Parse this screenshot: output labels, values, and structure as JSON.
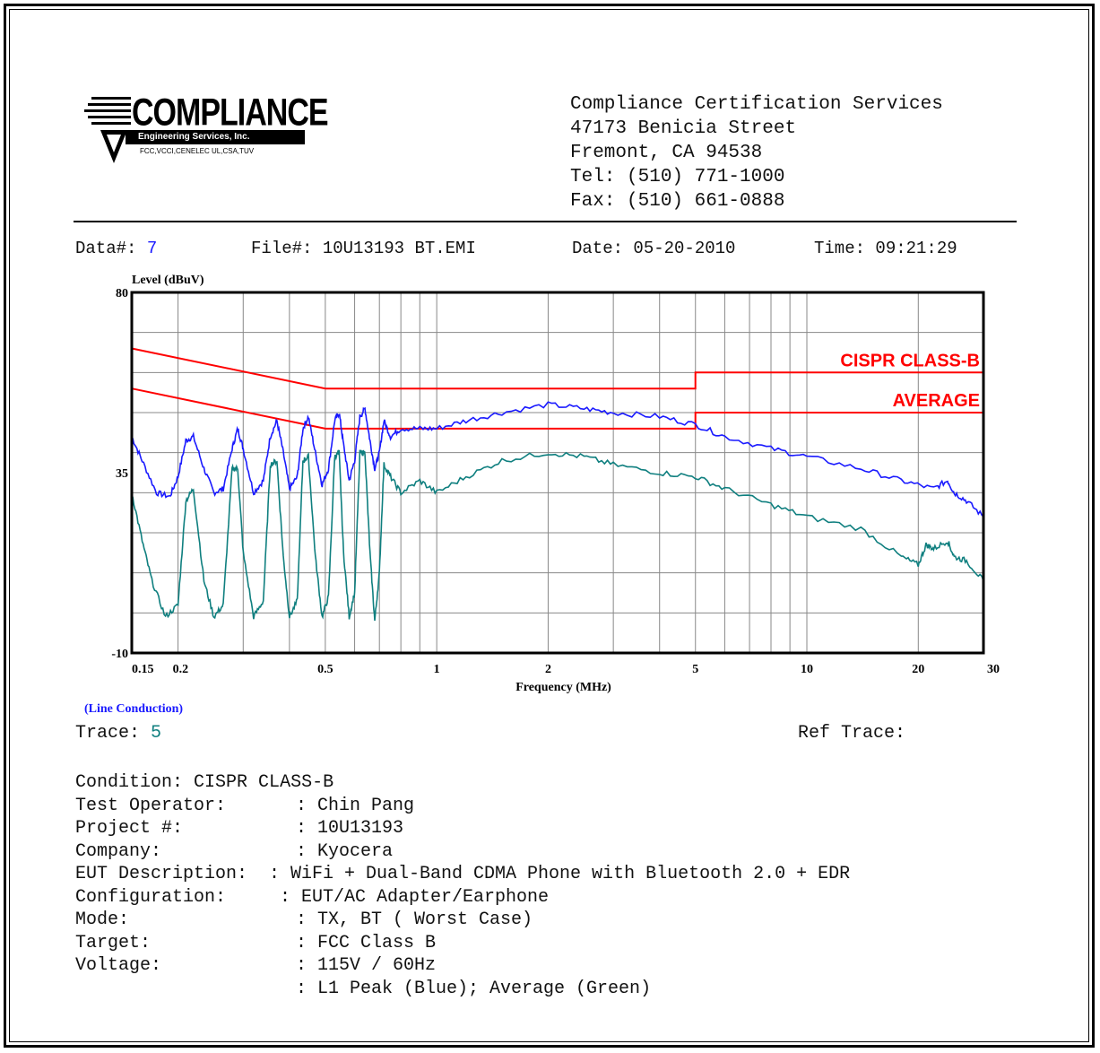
{
  "header": {
    "logo": {
      "word": "COMPLIANCE",
      "bar_text": "Engineering Services, Inc.",
      "small_text": "FCC,VCCI,CENELEC UL,CSA,TUV"
    },
    "address": [
      "Compliance Certification Services",
      "47173 Benicia Street",
      "Fremont, CA 94538",
      "Tel: (510) 771-1000",
      "Fax: (510) 661-0888"
    ]
  },
  "info": {
    "data_label": "Data#:",
    "data_value": "7",
    "file_label": "File#:",
    "file_value": "10U13193 BT.EMI",
    "date_label": "Date:",
    "date_value": "05-20-2010",
    "time_label": "Time:",
    "time_value": "09:21:29"
  },
  "chart_data": {
    "type": "line",
    "title": "",
    "ylabel": "Level (dBuV)",
    "xlabel": "Frequency (MHz)",
    "x_scale": "log",
    "xlim": [
      0.15,
      30
    ],
    "ylim": [
      -10,
      80
    ],
    "y_ticks": [
      "80",
      "35",
      "-10"
    ],
    "x_tick_labels": [
      {
        "v": 0.15,
        "t": "0.15"
      },
      {
        "v": 0.2,
        "t": "0.2"
      },
      {
        "v": 0.5,
        "t": "0.5"
      },
      {
        "v": 1,
        "t": "1"
      },
      {
        "v": 2,
        "t": "2"
      },
      {
        "v": 5,
        "t": "5"
      },
      {
        "v": 10,
        "t": "10"
      },
      {
        "v": 20,
        "t": "20"
      },
      {
        "v": 30,
        "t": "30"
      }
    ],
    "grid": true,
    "limit_lines": [
      {
        "name": "CISPR CLASS-B",
        "color": "#ff0000",
        "points": [
          [
            0.15,
            66
          ],
          [
            0.5,
            56
          ],
          [
            5,
            56
          ],
          [
            5,
            60
          ],
          [
            30,
            60
          ]
        ]
      },
      {
        "name": "AVERAGE",
        "color": "#ff0000",
        "points": [
          [
            0.15,
            56
          ],
          [
            0.5,
            46
          ],
          [
            5,
            46
          ],
          [
            5,
            50
          ],
          [
            30,
            50
          ]
        ]
      }
    ],
    "series": [
      {
        "name": "Peak",
        "color": "#1a1aff",
        "points": [
          [
            0.15,
            44
          ],
          [
            0.16,
            38
          ],
          [
            0.175,
            30
          ],
          [
            0.19,
            29
          ],
          [
            0.2,
            34
          ],
          [
            0.21,
            43
          ],
          [
            0.22,
            44
          ],
          [
            0.235,
            36
          ],
          [
            0.25,
            30
          ],
          [
            0.265,
            31
          ],
          [
            0.28,
            41
          ],
          [
            0.29,
            46
          ],
          [
            0.3,
            41
          ],
          [
            0.32,
            30
          ],
          [
            0.34,
            33
          ],
          [
            0.355,
            44
          ],
          [
            0.37,
            48
          ],
          [
            0.385,
            40
          ],
          [
            0.4,
            31
          ],
          [
            0.42,
            34
          ],
          [
            0.435,
            46
          ],
          [
            0.45,
            49
          ],
          [
            0.47,
            40
          ],
          [
            0.49,
            32
          ],
          [
            0.51,
            36
          ],
          [
            0.53,
            48
          ],
          [
            0.545,
            50
          ],
          [
            0.56,
            42
          ],
          [
            0.58,
            33
          ],
          [
            0.6,
            38
          ],
          [
            0.62,
            49
          ],
          [
            0.64,
            51
          ],
          [
            0.66,
            43
          ],
          [
            0.68,
            36
          ],
          [
            0.7,
            40
          ],
          [
            0.72,
            48
          ],
          [
            0.75,
            44
          ],
          [
            0.8,
            46
          ],
          [
            0.9,
            46
          ],
          [
            1.0,
            46
          ],
          [
            1.2,
            48
          ],
          [
            1.5,
            50
          ],
          [
            2.0,
            52
          ],
          [
            2.5,
            51
          ],
          [
            3.0,
            50
          ],
          [
            4.0,
            49
          ],
          [
            5.0,
            47
          ],
          [
            6.0,
            44
          ],
          [
            8.0,
            41
          ],
          [
            10.0,
            39
          ],
          [
            14.0,
            36
          ],
          [
            18.0,
            33
          ],
          [
            22.0,
            31
          ],
          [
            24.0,
            33
          ],
          [
            25.0,
            30
          ],
          [
            27.0,
            28
          ],
          [
            30.0,
            24
          ]
        ]
      },
      {
        "name": "Average",
        "color": "#0f7f7f",
        "points": [
          [
            0.15,
            30
          ],
          [
            0.16,
            18
          ],
          [
            0.17,
            8
          ],
          [
            0.185,
            -1
          ],
          [
            0.2,
            2
          ],
          [
            0.21,
            28
          ],
          [
            0.22,
            31
          ],
          [
            0.235,
            8
          ],
          [
            0.25,
            -1
          ],
          [
            0.265,
            2
          ],
          [
            0.28,
            36
          ],
          [
            0.29,
            36
          ],
          [
            0.3,
            15
          ],
          [
            0.32,
            -1
          ],
          [
            0.34,
            3
          ],
          [
            0.355,
            37
          ],
          [
            0.37,
            38
          ],
          [
            0.385,
            14
          ],
          [
            0.4,
            -1
          ],
          [
            0.42,
            3
          ],
          [
            0.435,
            38
          ],
          [
            0.45,
            39
          ],
          [
            0.47,
            14
          ],
          [
            0.49,
            -1
          ],
          [
            0.51,
            4
          ],
          [
            0.53,
            39
          ],
          [
            0.545,
            40
          ],
          [
            0.56,
            15
          ],
          [
            0.58,
            -1
          ],
          [
            0.6,
            5
          ],
          [
            0.62,
            40
          ],
          [
            0.64,
            40
          ],
          [
            0.66,
            15
          ],
          [
            0.68,
            -2
          ],
          [
            0.7,
            10
          ],
          [
            0.72,
            37
          ],
          [
            0.75,
            34
          ],
          [
            0.8,
            30
          ],
          [
            0.9,
            33
          ],
          [
            1.0,
            30
          ],
          [
            1.2,
            34
          ],
          [
            1.5,
            38
          ],
          [
            2.0,
            40
          ],
          [
            2.5,
            39
          ],
          [
            3.0,
            37
          ],
          [
            4.0,
            35
          ],
          [
            5.0,
            34
          ],
          [
            6.0,
            31
          ],
          [
            8.0,
            27
          ],
          [
            10.0,
            24
          ],
          [
            14.0,
            21
          ],
          [
            18.0,
            14
          ],
          [
            20.0,
            12
          ],
          [
            21.0,
            17
          ],
          [
            22.0,
            16
          ],
          [
            24.0,
            18
          ],
          [
            25.0,
            14
          ],
          [
            27.0,
            13
          ],
          [
            30.0,
            8
          ]
        ]
      }
    ],
    "labels": {
      "cispr": "CISPR CLASS-B",
      "average": "AVERAGE"
    }
  },
  "line_conduction": "(Line Conduction)",
  "trace": {
    "label": "Trace:",
    "value": "5",
    "ref_label": "Ref Trace:"
  },
  "details": [
    {
      "label": "Condition:",
      "value": "CISPR CLASS-B"
    },
    {
      "label": "Test Operator:",
      "value": ": Chin Pang"
    },
    {
      "label": "Project #:",
      "value": ": 10U13193"
    },
    {
      "label": "Company:",
      "value": ": Kyocera"
    },
    {
      "label": "EUT Description:",
      "value": ": WiFi + Dual-Band CDMA Phone with Bluetooth 2.0 + EDR"
    },
    {
      "label": "Configuration:",
      "value": ": EUT/AC Adapter/Earphone"
    },
    {
      "label": "Mode:",
      "value": ": TX, BT ( Worst Case)"
    },
    {
      "label": "Target:",
      "value": ": FCC Class B"
    },
    {
      "label": "Voltage:",
      "value": ": 115V / 60Hz"
    },
    {
      "label": "",
      "value": ": L1 Peak (Blue); Average (Green)"
    }
  ]
}
